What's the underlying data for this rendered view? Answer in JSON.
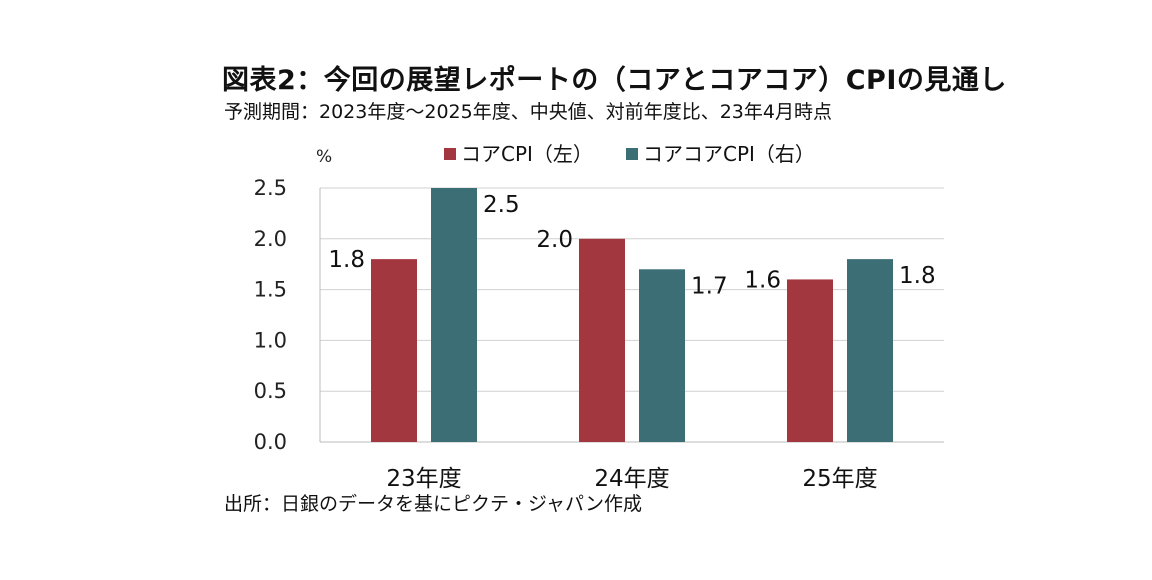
{
  "title": "図表2：今回の展望レポートの（コアとコアコア）CPIの見通し",
  "subtitle": "予測期間：2023年度～2025年度、中央値、対前年度比、23年4月時点",
  "source": "出所：日銀のデータを基にピクテ・ジャパン作成",
  "chart_data": {
    "type": "bar",
    "categories": [
      "23年度",
      "24年度",
      "25年度"
    ],
    "series": [
      {
        "name": "コアCPI（左）",
        "color": "#a3373f",
        "values": [
          1.8,
          2.0,
          1.6
        ],
        "labels": [
          "1.8",
          "2.0",
          "1.6"
        ]
      },
      {
        "name": "コアコアCPI（右）",
        "color": "#3b6f75",
        "values": [
          2.5,
          1.7,
          1.8
        ],
        "labels": [
          "2.5",
          "1.7",
          "1.8"
        ]
      }
    ],
    "ylabel": "%",
    "ylim": [
      0,
      2.5
    ],
    "yticks": [
      "0.0",
      "0.5",
      "1.0",
      "1.5",
      "2.0",
      "2.5"
    ],
    "grid": true,
    "legend": "top"
  }
}
